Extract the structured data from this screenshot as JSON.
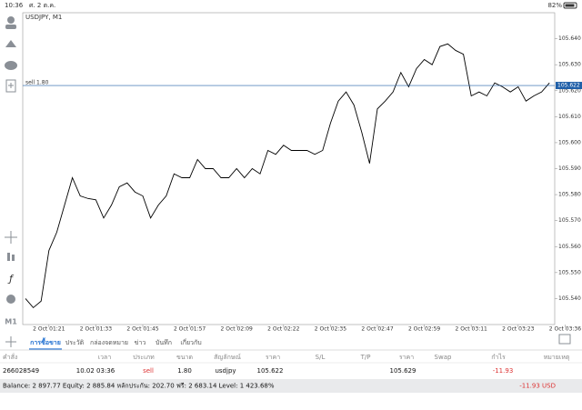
{
  "status_bar": {
    "time": "10:36",
    "date": "ศ. 2 ต.ค.",
    "battery": "82%"
  },
  "toolbar": {
    "timeframe": "M1"
  },
  "chart_data": {
    "type": "line",
    "title": "USDJPY, M1",
    "categories": [
      null,
      null,
      null,
      "2 Oct 01:21",
      null,
      null,
      null,
      null,
      null,
      "2 Oct 01:33",
      null,
      null,
      null,
      null,
      null,
      "2 Oct 01:45",
      null,
      null,
      null,
      null,
      null,
      "2 Oct 01:57",
      null,
      null,
      null,
      null,
      null,
      "2 Oct 02:09",
      null,
      null,
      null,
      null,
      null,
      "2 Oct 02:22",
      null,
      null,
      null,
      null,
      null,
      "2 Oct 02:35",
      null,
      null,
      null,
      null,
      null,
      "2 Oct 02:47",
      null,
      null,
      null,
      null,
      null,
      "2 Oct 02:59",
      null,
      null,
      null,
      null,
      null,
      "2 Oct 03:11",
      null,
      null,
      null,
      null,
      null,
      "2 Oct 03:23",
      null,
      null,
      null,
      null,
      null,
      "2 Oct 03:36"
    ],
    "series": [
      {
        "name": "USDJPY",
        "color": "#000000",
        "values": [
          105.54,
          105.5365,
          105.539,
          105.5585,
          105.5655,
          105.576,
          105.5865,
          105.5795,
          105.5785,
          105.578,
          105.571,
          105.576,
          105.583,
          105.5845,
          105.581,
          105.5795,
          105.571,
          105.576,
          105.5795,
          105.588,
          105.5865,
          105.5865,
          105.5935,
          105.59,
          105.59,
          105.5865,
          105.5865,
          105.59,
          105.5865,
          105.59,
          105.588,
          105.597,
          105.5955,
          105.599,
          105.597,
          105.597,
          105.597,
          105.5955,
          105.597,
          105.6075,
          105.616,
          105.6195,
          105.6145,
          105.604,
          105.592,
          105.613,
          105.616,
          105.6195,
          105.627,
          105.6215,
          105.6285,
          105.632,
          105.63,
          105.637,
          105.638,
          105.6355,
          105.634,
          105.618,
          105.6195,
          105.618,
          105.623,
          105.6215,
          105.6195,
          105.6215,
          105.616,
          105.618,
          105.6195,
          105.623,
          null,
          null
        ]
      }
    ],
    "ylim": [
      105.53,
      105.65
    ],
    "yticks": [
      {
        "value": 105.54,
        "label": "105.540"
      },
      {
        "value": 105.55,
        "label": "105.550"
      },
      {
        "value": 105.56,
        "label": "105.560"
      },
      {
        "value": 105.57,
        "label": "105.570"
      },
      {
        "value": 105.58,
        "label": "105.580"
      },
      {
        "value": 105.59,
        "label": "105.590"
      },
      {
        "value": 105.6,
        "label": "105.600"
      },
      {
        "value": 105.61,
        "label": "105.610"
      },
      {
        "value": 105.62,
        "label": "105.620"
      },
      {
        "value": 105.63,
        "label": "105.630"
      },
      {
        "value": 105.64,
        "label": "105.640"
      }
    ],
    "grid": false,
    "sell_line": {
      "label": "sell 1.80",
      "value": 105.622,
      "color": "#1f5fa8"
    }
  },
  "tabs": [
    "การซื้อขาย",
    "ประวัติ",
    "กล่องจดหมาย",
    "ข่าว",
    "บันทึก",
    "เกี่ยวกับ"
  ],
  "table": {
    "headers": [
      "คำสั่ง",
      "เวลา",
      "ประเภท",
      "ขนาด",
      "สัญลักษณ์",
      "ราคา",
      "S/L",
      "T/P",
      "ราคา",
      "Swap",
      "กำไร",
      "หมายเหตุ"
    ],
    "row": {
      "order": "266028549",
      "time": "10.02 03:36",
      "type": "sell",
      "volume": "1.80",
      "symbol": "usdjpy",
      "open_price": "105.622",
      "price": "105.629",
      "profit": "-11.93"
    }
  },
  "footer": {
    "balance": "Balance: 2 897.77 Equity: 2 885.84 หลักประกัน: 202.70 ฟรี: 2 683.14 Level: 1 423.68%",
    "total": "-11.93 USD"
  }
}
